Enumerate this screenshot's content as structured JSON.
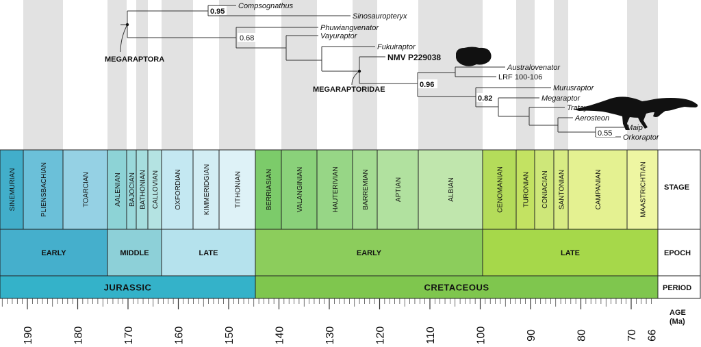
{
  "phylogeny": {
    "taxa": {
      "compsognathus": "Compsognathus",
      "sinosauropteryx": "Sinosauropteryx",
      "phuwiangvenator": "Phuwiangvenator",
      "vayuraptor": "Vayuraptor",
      "fukuiraptor": "Fukuiraptor",
      "nmv": "NMV P229038",
      "australovenator": "Australovenator",
      "lrf": "LRF 100-106",
      "murusraptor": "Murusraptor",
      "megaraptor": "Megaraptor",
      "tratayenia": "Tratayenia",
      "aerosteon": "Aerosteon",
      "maip": "Maip",
      "orkoraptor": "Orkoraptor"
    },
    "support": {
      "s1": "0.95",
      "s2": "0.68",
      "s3": "0.96",
      "s4": "0.82",
      "s5": "0.55"
    },
    "clades": {
      "megaraptora": "MEGARAPTORA",
      "megaraptoridae": "MEGARAPTORIDAE"
    }
  },
  "timescale": {
    "row_labels": {
      "stage": "STAGE",
      "epoch": "EPOCH",
      "period": "PERIOD",
      "age_line1": "AGE",
      "age_line2": "(Ma)"
    },
    "stages": [
      {
        "name": "SINEMURIAN",
        "color": "#42aeca"
      },
      {
        "name": "PLIENSBACHIAN",
        "color": "#6bc0d9"
      },
      {
        "name": "TOARCIAN",
        "color": "#95d1e4"
      },
      {
        "name": "AALENIAN",
        "color": "#8dd3d6"
      },
      {
        "name": "BAJOCIAN",
        "color": "#9ad9db"
      },
      {
        "name": "BATHONIAN",
        "color": "#a6dede"
      },
      {
        "name": "CALLOVIAN",
        "color": "#b4e3e2"
      },
      {
        "name": "OXFORDIAN",
        "color": "#c4e8f2"
      },
      {
        "name": "KIMMERIDGIAN",
        "color": "#d2edf4"
      },
      {
        "name": "TITHONIAN",
        "color": "#def2f7"
      },
      {
        "name": "BERRIASIAN",
        "color": "#7ccb6a"
      },
      {
        "name": "VALANGINIAN",
        "color": "#8ad17a"
      },
      {
        "name": "HAUTERIVIAN",
        "color": "#97d686"
      },
      {
        "name": "BARREMIAN",
        "color": "#a4dc92"
      },
      {
        "name": "APTIAN",
        "color": "#b1e19f"
      },
      {
        "name": "ALBIAN",
        "color": "#c0e6ad"
      },
      {
        "name": "CENOMANIAN",
        "color": "#b4dc5a"
      },
      {
        "name": "TURONIAN",
        "color": "#c3e262"
      },
      {
        "name": "CONIACIAN",
        "color": "#cee779"
      },
      {
        "name": "SANTONIAN",
        "color": "#d8ec84"
      },
      {
        "name": "CAMPANIAN",
        "color": "#e4f191"
      },
      {
        "name": "MAASTRICHTIAN",
        "color": "#eef6a2"
      }
    ],
    "epochs": [
      {
        "name": "EARLY",
        "color": "#45afcc"
      },
      {
        "name": "MIDDLE",
        "color": "#8dd0d8"
      },
      {
        "name": "LATE",
        "color": "#b5e2ed"
      },
      {
        "name": "EARLY",
        "color": "#8ccd5c"
      },
      {
        "name": "LATE",
        "color": "#a6d84a"
      }
    ],
    "periods": [
      {
        "name": "JURASSIC",
        "color": "#34b2c9"
      },
      {
        "name": "CRETACEOUS",
        "color": "#7fc64e"
      }
    ],
    "ages": [
      "190",
      "180",
      "170",
      "160",
      "150",
      "140",
      "130",
      "120",
      "110",
      "100",
      "90",
      "80",
      "70",
      "66"
    ]
  }
}
